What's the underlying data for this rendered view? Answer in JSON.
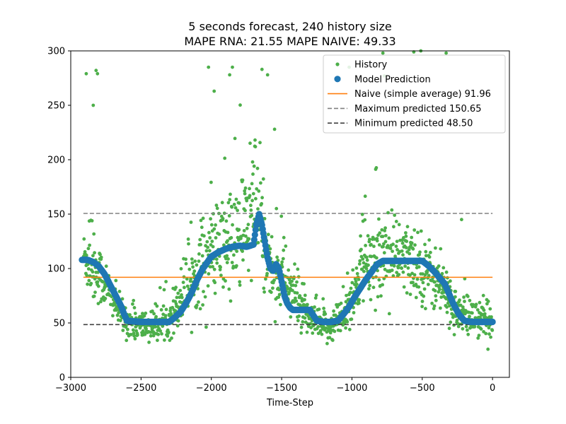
{
  "chart_data": {
    "type": "scatter",
    "title": "5 seconds forecast, 240 history size",
    "subtitle": "MAPE RNA: 21.55 MAPE NAIVE: 49.33",
    "xlabel": "Time-Step",
    "ylabel": "",
    "xlim": [
      -3000,
      120
    ],
    "ylim": [
      0,
      300
    ],
    "xticks": [
      -3000,
      -2500,
      -2000,
      -1500,
      -1000,
      -500,
      0
    ],
    "xtick_labels": [
      "−3000",
      "−2500",
      "−2000",
      "−1500",
      "−1000",
      "−500",
      "0"
    ],
    "yticks": [
      0,
      50,
      100,
      150,
      200,
      250,
      300
    ],
    "ytick_labels": [
      "0",
      "50",
      "100",
      "150",
      "200",
      "250",
      "300"
    ],
    "grid": false,
    "legend_position": "top-right",
    "colors": {
      "history": "#4daf4a",
      "prediction": "#1f77b4",
      "naive": "#ff7f0e",
      "maximum": "#808080",
      "minimum": "#404040"
    },
    "history_trend": {
      "x": [
        -2910,
        -2850,
        -2800,
        -2750,
        -2700,
        -2650,
        -2600,
        -2550,
        -2500,
        -2450,
        -2400,
        -2350,
        -2300,
        -2250,
        -2200,
        -2150,
        -2100,
        -2050,
        -2000,
        -1950,
        -1900,
        -1850,
        -1800,
        -1750,
        -1700,
        -1660,
        -1620,
        -1580,
        -1550,
        -1500,
        -1450,
        -1400,
        -1350,
        -1300,
        -1250,
        -1200,
        -1150,
        -1100,
        -1050,
        -1000,
        -950,
        -900,
        -850,
        -800,
        -750,
        -700,
        -650,
        -600,
        -550,
        -500,
        -450,
        -400,
        -350,
        -300,
        -250,
        -200,
        -150,
        -100,
        -50,
        0
      ],
      "y": [
        112,
        102,
        95,
        85,
        72,
        60,
        52,
        48,
        47,
        48,
        46,
        48,
        55,
        65,
        78,
        88,
        97,
        105,
        112,
        118,
        122,
        126,
        132,
        140,
        150,
        148,
        118,
        100,
        95,
        92,
        85,
        72,
        62,
        52,
        48,
        46,
        47,
        52,
        60,
        72,
        88,
        100,
        108,
        112,
        110,
        108,
        108,
        108,
        106,
        102,
        95,
        88,
        80,
        70,
        60,
        55,
        55,
        52,
        50,
        50
      ],
      "spread": [
        20,
        30,
        25,
        22,
        16,
        14,
        14,
        13,
        14,
        13,
        13,
        14,
        16,
        20,
        24,
        25,
        30,
        32,
        36,
        40,
        45,
        50,
        52,
        55,
        55,
        50,
        40,
        32,
        28,
        26,
        24,
        20,
        18,
        14,
        14,
        13,
        14,
        15,
        18,
        22,
        26,
        30,
        35,
        35,
        33,
        32,
        30,
        30,
        30,
        30,
        28,
        25,
        22,
        20,
        18,
        16,
        16,
        15,
        15,
        14
      ]
    },
    "history_outliers": {
      "x": [
        -2890,
        -2840,
        -2820,
        -2810,
        -2020,
        -1980,
        -1870,
        -1850,
        -1640,
        -1600,
        -1550,
        -1020,
        -780,
        -770,
        -560,
        -510,
        -330,
        -220
      ],
      "y": [
        279,
        250,
        282,
        279,
        285,
        263,
        278,
        285,
        283,
        278,
        228,
        285,
        298,
        277,
        299,
        300,
        298,
        145
      ]
    },
    "prediction": {
      "x": [
        -2920,
        -2880,
        -2840,
        -2800,
        -2760,
        -2720,
        -2680,
        -2640,
        -2620,
        -2600,
        -2500,
        -2400,
        -2300,
        -2260,
        -2220,
        -2180,
        -2140,
        -2100,
        -2060,
        -2000,
        -1950,
        -1900,
        -1850,
        -1800,
        -1750,
        -1700,
        -1680,
        -1660,
        -1640,
        -1620,
        -1600,
        -1580,
        -1560,
        -1540,
        -1520,
        -1500,
        -1480,
        -1460,
        -1440,
        -1420,
        -1400,
        -1350,
        -1300,
        -1280,
        -1250,
        -1200,
        -1150,
        -1100,
        -1060,
        -1020,
        -980,
        -940,
        -900,
        -860,
        -820,
        -780,
        -740,
        -700,
        -650,
        -600,
        -550,
        -500,
        -460,
        -420,
        -380,
        -340,
        -320,
        -300,
        -280,
        -260,
        -240,
        -200,
        -150,
        -100,
        -50,
        0
      ],
      "y": [
        108,
        108,
        106,
        102,
        95,
        85,
        75,
        65,
        58,
        52,
        51,
        51,
        51,
        55,
        60,
        68,
        78,
        90,
        100,
        111,
        115,
        118,
        120,
        121,
        120,
        122,
        140,
        150,
        140,
        125,
        110,
        100,
        98,
        104,
        100,
        88,
        75,
        68,
        64,
        62,
        62,
        62,
        62,
        58,
        52,
        51,
        51,
        52,
        58,
        65,
        74,
        82,
        90,
        97,
        104,
        107,
        107,
        107,
        107,
        107,
        107,
        107,
        103,
        98,
        92,
        86,
        80,
        74,
        68,
        63,
        58,
        52,
        51,
        51,
        51,
        51
      ]
    },
    "lines": [
      {
        "name": "Naive (simple average) 91.96",
        "value": 91.96,
        "x": [
          -2910,
          0
        ],
        "style": "solid"
      },
      {
        "name": "Maximum predicted 150.65",
        "value": 150.65,
        "x": [
          -2910,
          0
        ],
        "style": "dashed"
      },
      {
        "name": "Minimum predicted 48.50",
        "value": 48.5,
        "x": [
          -2910,
          0
        ],
        "style": "dashed"
      }
    ],
    "legend": [
      {
        "label": "History",
        "kind": "dot-small",
        "color_key": "history"
      },
      {
        "label": "Model Prediction",
        "kind": "dot-large",
        "color_key": "prediction"
      },
      {
        "label": "Naive (simple average) 91.96",
        "kind": "line",
        "color_key": "naive"
      },
      {
        "label": "Maximum predicted 150.65",
        "kind": "dashed",
        "color_key": "maximum"
      },
      {
        "label": "Minimum predicted 48.50",
        "kind": "dashed",
        "color_key": "minimum"
      }
    ]
  }
}
